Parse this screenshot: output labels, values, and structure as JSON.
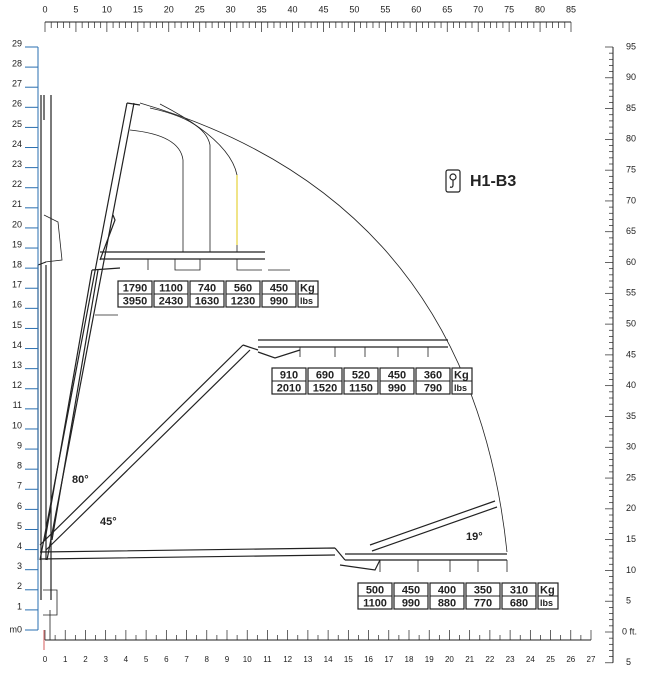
{
  "title": "H1-B3",
  "scales": {
    "top_ft": [
      0,
      5,
      10,
      15,
      20,
      25,
      30,
      35,
      40,
      45,
      50,
      55,
      60,
      65,
      70,
      75,
      80,
      85
    ],
    "left_m_origin": "m0",
    "left_m": [
      1,
      2,
      3,
      4,
      5,
      6,
      7,
      8,
      9,
      10,
      11,
      12,
      13,
      14,
      15,
      16,
      17,
      18,
      19,
      20,
      21,
      22,
      23,
      24,
      25,
      26,
      27,
      28,
      29
    ],
    "bottom_m": [
      0,
      1,
      2,
      3,
      4,
      5,
      6,
      7,
      8,
      9,
      10,
      11,
      12,
      13,
      14,
      15,
      16,
      17,
      18,
      19,
      20,
      21,
      22,
      23,
      24,
      25,
      26,
      27
    ],
    "right_ft_below": "5",
    "right_ft_origin": "0 ft.",
    "right_ft": [
      5,
      10,
      15,
      20,
      25,
      30,
      35,
      40,
      45,
      50,
      55,
      60,
      65,
      70,
      75,
      80,
      85,
      90,
      95
    ]
  },
  "angles": [
    "80°",
    "45°",
    "19°"
  ],
  "load_tables": [
    {
      "kg": [
        1790,
        1100,
        740,
        560,
        450
      ],
      "lbs": [
        3950,
        2430,
        1630,
        1230,
        990
      ],
      "kg_unit": "Kg",
      "lbs_unit": "lbs"
    },
    {
      "kg": [
        910,
        690,
        520,
        450,
        360
      ],
      "lbs": [
        2010,
        1520,
        1150,
        990,
        790
      ],
      "kg_unit": "Kg",
      "lbs_unit": "lbs"
    },
    {
      "kg": [
        500,
        450,
        400,
        350,
        310
      ],
      "lbs": [
        1100,
        990,
        880,
        770,
        680
      ],
      "kg_unit": "Kg",
      "lbs_unit": "lbs"
    }
  ]
}
